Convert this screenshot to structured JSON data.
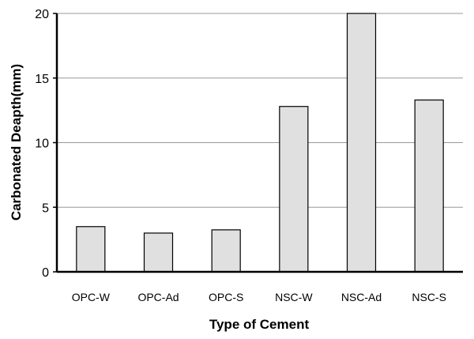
{
  "chart_data": {
    "type": "bar",
    "categories": [
      "OPC-W",
      "OPC-Ad",
      "OPC-S",
      "NSC-W",
      "NSC-Ad",
      "NSC-S"
    ],
    "values": [
      3.5,
      3.0,
      3.25,
      12.8,
      20,
      13.3
    ],
    "xlabel": "Type of Cement",
    "ylabel": "Carbonated Deapth(mm)",
    "ylim": [
      0,
      20
    ],
    "yticks": [
      "0",
      "5",
      "10",
      "15",
      "20"
    ],
    "grid": true,
    "bar_fill": "#e0e0e0",
    "bar_stroke": "#000000",
    "grid_color": "#999999"
  }
}
